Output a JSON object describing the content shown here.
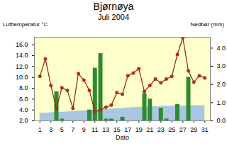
{
  "chart_data": {
    "type": "line",
    "title": "Bjørnøya",
    "subtitle": "Juli 2004",
    "ylabel": "Lufttemperatur °C",
    "y2label": "Nedbør (mm)",
    "xlabel": "Dato",
    "x": [
      1,
      2,
      3,
      4,
      5,
      6,
      7,
      8,
      9,
      10,
      11,
      12,
      13,
      14,
      15,
      16,
      17,
      18,
      19,
      20,
      21,
      22,
      23,
      24,
      25,
      26,
      27,
      28,
      29,
      30,
      31
    ],
    "series": [
      {
        "type": "area",
        "color": "#a9c6e3",
        "values": [
          3.4,
          3.45,
          3.5,
          3.55,
          3.6,
          3.65,
          3.7,
          3.8,
          3.85,
          3.9,
          4.0,
          4.05,
          4.1,
          4.2,
          4.25,
          4.3,
          4.4,
          4.45,
          4.5,
          4.55,
          4.6,
          4.6,
          4.65,
          4.7,
          4.7,
          4.75,
          4.75,
          4.8,
          4.8,
          4.8,
          4.8
        ]
      },
      {
        "type": "bar",
        "axis": "y2",
        "color": "#2e8b2e",
        "values": [
          0,
          0,
          0,
          1.6,
          0.1,
          0,
          0,
          0,
          0,
          0.6,
          2.9,
          3.7,
          0.1,
          0.1,
          0,
          0.2,
          0,
          0,
          0,
          1.5,
          1.2,
          0,
          0.7,
          0.1,
          0,
          0.9,
          0,
          2.4,
          0,
          0,
          0
        ]
      },
      {
        "type": "line",
        "color": "#8b2500",
        "marker": "circle",
        "values": [
          10.2,
          13.4,
          8.5,
          4.3,
          8.1,
          7.6,
          4.3,
          10.7,
          9.5,
          7.6,
          3.7,
          4.0,
          4.5,
          4.9,
          7.2,
          6.9,
          10.3,
          10.8,
          11.6,
          7.4,
          8.5,
          9.7,
          9.0,
          9.7,
          10.2,
          14.2,
          17.3,
          11.2,
          9.1,
          10.3,
          9.9
        ]
      }
    ],
    "xlim": [
      0,
      32
    ],
    "xticks": [
      1,
      3,
      5,
      7,
      9,
      11,
      13,
      15,
      17,
      19,
      21,
      23,
      25,
      27,
      29,
      31
    ],
    "ylim": [
      2,
      17.4
    ],
    "yticks": [
      {
        "value": 2,
        "label": "2.0"
      },
      {
        "value": 4,
        "label": "4.0"
      },
      {
        "value": 6,
        "label": "6.0"
      },
      {
        "value": 8,
        "label": "8.0"
      },
      {
        "value": 10,
        "label": "10.0"
      },
      {
        "value": 12,
        "label": "12.0"
      },
      {
        "value": 14,
        "label": "14.0"
      },
      {
        "value": 16,
        "label": "16.0"
      }
    ],
    "y2lim": [
      0,
      4.6
    ],
    "y2ticks": [
      {
        "value": 0,
        "label": "0.0"
      },
      {
        "value": 1,
        "label": "1.0"
      },
      {
        "value": 2,
        "label": "2.0"
      },
      {
        "value": 3,
        "label": "3.0"
      },
      {
        "value": 4,
        "label": "4.0"
      }
    ]
  }
}
